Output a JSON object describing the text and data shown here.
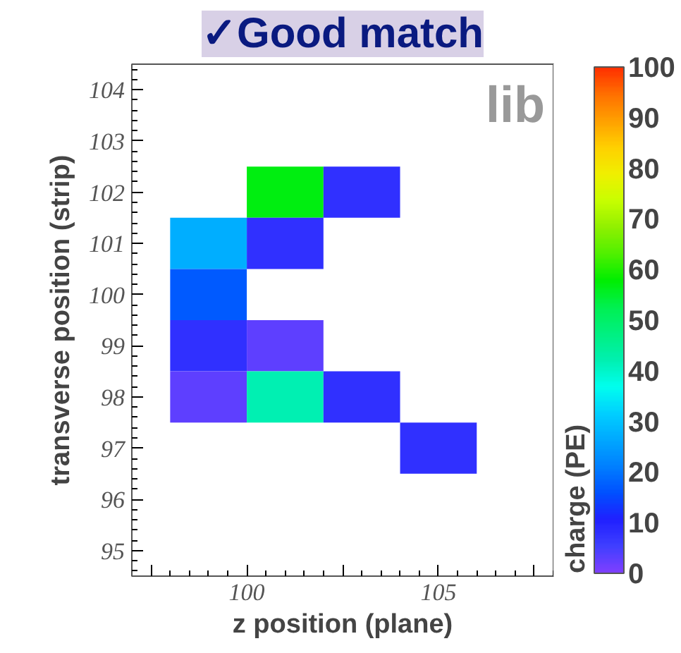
{
  "chart_data": {
    "type": "heatmap",
    "title": "✓Good match",
    "xlabel": "z position (plane)",
    "ylabel": "transverse position (strip)",
    "clabel": "charge (PE)",
    "annotations": [
      "lib"
    ],
    "x": [
      99,
      101,
      103,
      105
    ],
    "y": [
      102,
      101,
      100,
      99,
      98,
      97
    ],
    "cells": [
      [
        null,
        57,
        8,
        null
      ],
      [
        27,
        8,
        null,
        null
      ],
      [
        17,
        null,
        null,
        null
      ],
      [
        8,
        3,
        null,
        null
      ],
      [
        3,
        42,
        8,
        null
      ],
      [
        null,
        null,
        null,
        8
      ]
    ],
    "xlim": [
      97,
      108
    ],
    "ylim": [
      94.5,
      104.5
    ],
    "xticks": [
      {
        "value": 97.5,
        "label": null
      },
      100,
      {
        "value": 102.5,
        "label": null
      },
      105,
      {
        "value": 107.5,
        "label": null
      }
    ],
    "yticks": [
      95,
      96,
      97,
      98,
      99,
      100,
      101,
      102,
      103,
      104
    ],
    "clim": [
      0,
      100
    ],
    "cticks": [
      0,
      10,
      20,
      30,
      40,
      50,
      60,
      70,
      80,
      90,
      100
    ],
    "grid": false
  }
}
